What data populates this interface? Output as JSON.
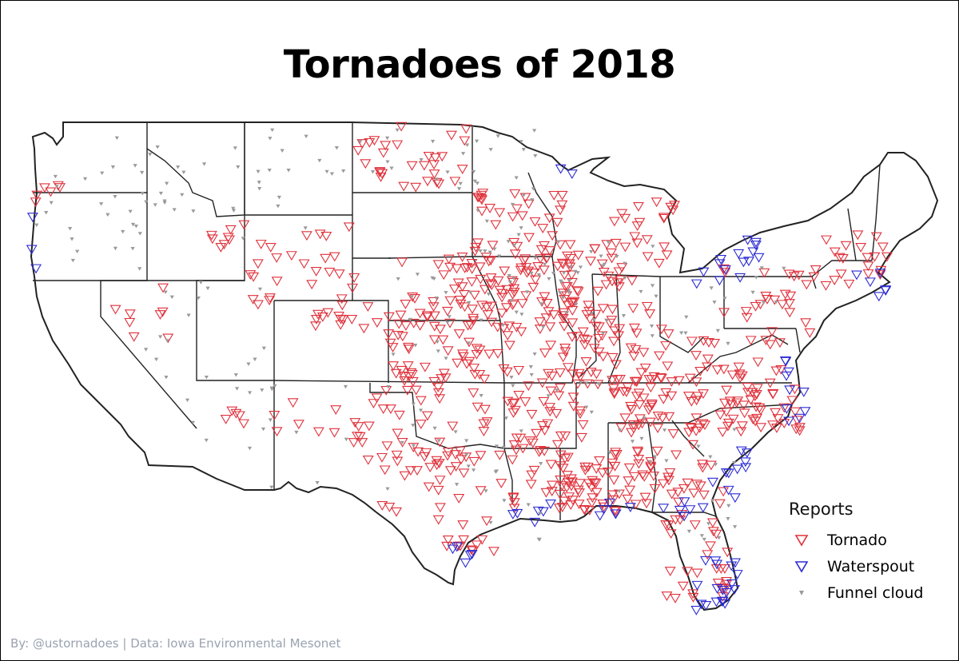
{
  "title": "Tornadoes of 2018",
  "legend": {
    "title": "Reports",
    "items": [
      {
        "label": "Tornado",
        "color": "#e0313b",
        "icon": "triangle-down-outline-icon"
      },
      {
        "label": "Waterspout",
        "color": "#2b2bd4",
        "icon": "triangle-down-outline-icon"
      },
      {
        "label": "Funnel cloud",
        "color": "#9a9a9a",
        "icon": "triangle-down-filled-icon"
      }
    ]
  },
  "credit": "By: @ustornadoes | Data: Iowa Environmental Mesonet",
  "colors": {
    "tornado": "#e0313b",
    "waterspout": "#2b2bd4",
    "funnel": "#9a9a9a",
    "border": "#222222"
  }
}
